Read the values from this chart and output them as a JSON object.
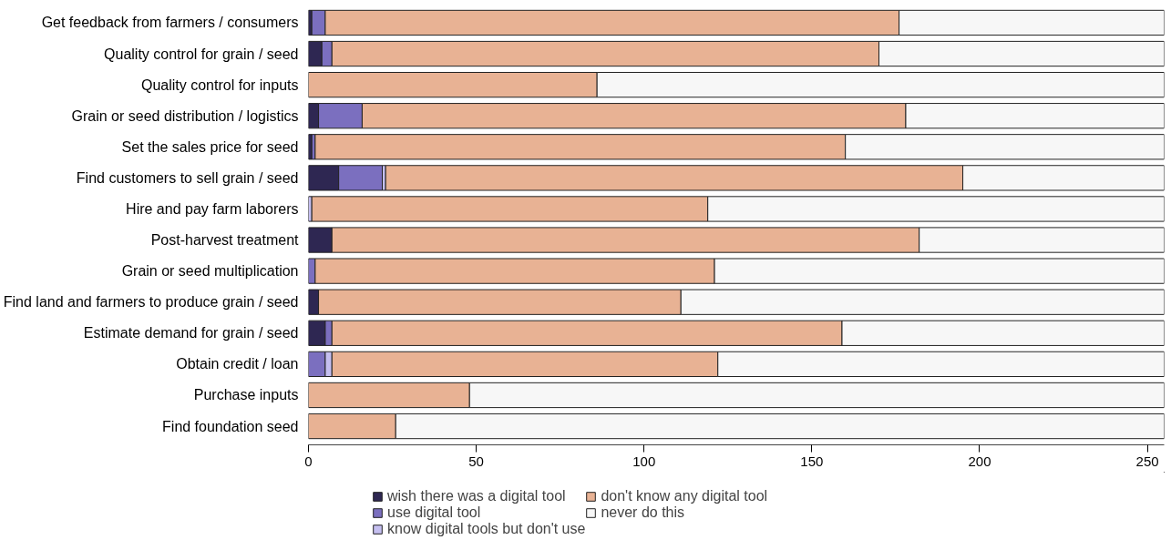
{
  "chart_data": {
    "type": "bar",
    "orientation": "horizontal",
    "stacked": true,
    "categories": [
      "Get feedback from farmers / consumers",
      "Quality control for grain / seed",
      "Quality control for inputs",
      "Grain or seed distribution / logistics",
      "Set the sales price for seed",
      "Find customers to sell grain / seed",
      "Hire and pay farm laborers",
      "Post-harvest treatment",
      "Grain or seed multiplication",
      "Find land and farmers to produce grain / seed",
      "Estimate demand for grain / seed",
      "Obtain credit / loan",
      "Purchase inputs",
      "Find foundation seed"
    ],
    "series": [
      {
        "name": "wish there was a digital tool",
        "color": "#2e2752",
        "values": [
          1,
          4,
          0,
          3,
          1,
          9,
          0,
          7,
          0,
          3,
          5,
          0,
          0,
          0
        ]
      },
      {
        "name": "use digital tool",
        "color": "#7b6fbf",
        "values": [
          4,
          3,
          0,
          13,
          1,
          13,
          0,
          0,
          2,
          0,
          2,
          5,
          0,
          0
        ]
      },
      {
        "name": "know digital tools but don't use",
        "color": "#c5bff0",
        "values": [
          0,
          0,
          0,
          0,
          0,
          1,
          1,
          0,
          0,
          0,
          0,
          2,
          0,
          0
        ]
      },
      {
        "name": "don't know any digital tool",
        "color": "#e8b294",
        "values": [
          171,
          163,
          86,
          162,
          158,
          172,
          118,
          175,
          119,
          108,
          152,
          115,
          48,
          26
        ]
      },
      {
        "name": "never do this",
        "color": "#f7f7f7",
        "values": [
          79,
          85,
          169,
          77,
          95,
          60,
          136,
          73,
          134,
          144,
          96,
          133,
          207,
          229
        ]
      }
    ],
    "xlim": [
      0,
      255
    ],
    "xticks": [
      0,
      50,
      100,
      150,
      200,
      250
    ],
    "grid": false,
    "legend": "bottom"
  }
}
